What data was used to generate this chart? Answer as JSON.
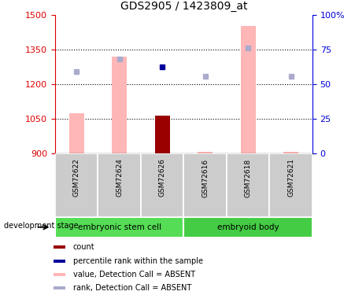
{
  "title": "GDS2905 / 1423809_at",
  "samples": [
    "GSM72622",
    "GSM72624",
    "GSM72626",
    "GSM72616",
    "GSM72618",
    "GSM72621"
  ],
  "ylim_left": [
    900,
    1500
  ],
  "ylim_right": [
    0,
    100
  ],
  "yticks_left": [
    900,
    1050,
    1200,
    1350,
    1500
  ],
  "yticks_right": [
    0,
    25,
    50,
    75,
    100
  ],
  "value_bars": [
    1073,
    1320,
    1063,
    907,
    1450,
    908
  ],
  "count_bars": [
    null,
    null,
    1063,
    null,
    null,
    null
  ],
  "rank_dots_dark": [
    null,
    null,
    1275,
    null,
    null,
    null
  ],
  "rank_dots_light": [
    1255,
    1310,
    null,
    1235,
    1355,
    1235
  ],
  "value_color_absent": "#FFB6B6",
  "count_color": "#990000",
  "rank_dark_color": "#000099",
  "rank_light_color": "#AAAACC",
  "label_color_left": "#DD0000",
  "label_color_right": "#0000DD",
  "group_color_1": "#55DD55",
  "group_color_2": "#44CC44",
  "sample_bg": "#CCCCCC",
  "dev_stage_label": "development stage",
  "group1_label": "embryonic stem cell",
  "group2_label": "embryoid body",
  "legend_items": [
    {
      "color": "#990000",
      "label": "count"
    },
    {
      "color": "#000099",
      "label": "percentile rank within the sample"
    },
    {
      "color": "#FFB6B6",
      "label": "value, Detection Call = ABSENT"
    },
    {
      "color": "#AAAACC",
      "label": "rank, Detection Call = ABSENT"
    }
  ]
}
